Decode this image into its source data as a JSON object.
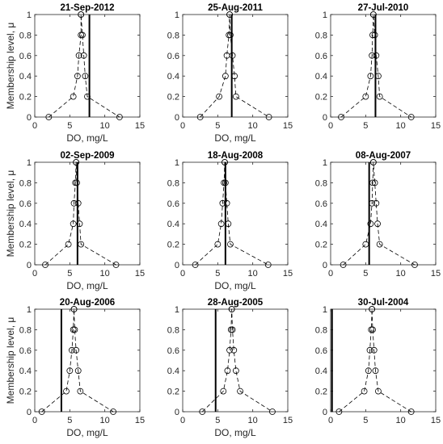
{
  "chart_data": [
    {
      "type": "line",
      "title": "21-Sep-2012",
      "xlabel": "DO, mg/L",
      "ylabel": "Membership level, μ",
      "xlim": [
        0,
        15
      ],
      "ylim": [
        0,
        1
      ],
      "xticks": [
        "0",
        "5",
        "10",
        "15"
      ],
      "yticks": [
        "0",
        "0.2",
        "0.4",
        "0.6",
        "0.8",
        "1"
      ],
      "series": [
        {
          "x": [
            2.0,
            5.5,
            6.1,
            6.3,
            6.6,
            6.6,
            6.6,
            6.8,
            7.0,
            7.2,
            7.5,
            12.1
          ],
          "y": [
            0,
            0.2,
            0.4,
            0.6,
            0.8,
            1,
            1,
            0.8,
            0.6,
            0.4,
            0.2,
            0
          ]
        }
      ],
      "vertical_line_x": 7.8
    },
    {
      "type": "line",
      "title": "25-Aug-2011",
      "xlabel": "DO, mg/L",
      "ylabel": "",
      "xlim": [
        0,
        15
      ],
      "ylim": [
        0,
        1
      ],
      "xticks": [
        "0",
        "5",
        "10",
        "15"
      ],
      "yticks": [
        "0",
        "0.2",
        "0.4",
        "0.6",
        "0.8",
        "1"
      ],
      "series": [
        {
          "x": [
            2.5,
            5.2,
            6.1,
            6.3,
            6.6,
            6.7,
            6.7,
            6.8,
            7.1,
            7.4,
            7.6,
            12.3
          ],
          "y": [
            0,
            0.2,
            0.4,
            0.6,
            0.8,
            1,
            1,
            0.8,
            0.6,
            0.4,
            0.2,
            0
          ]
        }
      ],
      "vertical_line_x": 7.0
    },
    {
      "type": "line",
      "title": "27-Jul-2010",
      "xlabel": "",
      "ylabel": "",
      "xlim": [
        0,
        15
      ],
      "ylim": [
        0,
        1
      ],
      "xticks": [
        "0",
        "5",
        "10",
        "15"
      ],
      "yticks": [
        "0",
        "0.2",
        "0.4",
        "0.6",
        "0.8",
        "1"
      ],
      "series": [
        {
          "x": [
            1.5,
            5.0,
            5.7,
            5.9,
            6.0,
            6.1,
            6.1,
            6.3,
            6.5,
            6.8,
            7.0,
            11.5
          ],
          "y": [
            0,
            0.2,
            0.4,
            0.6,
            0.8,
            1,
            1,
            0.8,
            0.6,
            0.4,
            0.2,
            0
          ]
        }
      ],
      "vertical_line_x": 6.4
    },
    {
      "type": "line",
      "title": "02-Sep-2009",
      "xlabel": "DO, mg/L",
      "ylabel": "Membership level, μ",
      "xlim": [
        0,
        15
      ],
      "ylim": [
        0,
        1
      ],
      "xticks": [
        "0",
        "5",
        "10",
        "15"
      ],
      "yticks": [
        "0",
        "0.2",
        "0.4",
        "0.6",
        "0.8",
        "1"
      ],
      "series": [
        {
          "x": [
            1.5,
            4.8,
            5.5,
            5.6,
            5.8,
            5.9,
            5.9,
            6.0,
            6.2,
            6.4,
            6.6,
            11.6
          ],
          "y": [
            0,
            0.2,
            0.4,
            0.6,
            0.8,
            1,
            1,
            0.8,
            0.6,
            0.4,
            0.2,
            0
          ]
        }
      ],
      "vertical_line_x": 6.1
    },
    {
      "type": "line",
      "title": "18-Aug-2008",
      "xlabel": "DO, mg/L",
      "ylabel": "",
      "xlim": [
        0,
        15
      ],
      "ylim": [
        0,
        1
      ],
      "xticks": [
        "0",
        "5",
        "10",
        "15"
      ],
      "yticks": [
        "0",
        "0.2",
        "0.4",
        "0.6",
        "0.8",
        "1"
      ],
      "series": [
        {
          "x": [
            1.8,
            5.0,
            5.5,
            5.7,
            5.9,
            6.0,
            6.0,
            6.1,
            6.3,
            6.5,
            6.8,
            12.2
          ],
          "y": [
            0,
            0.2,
            0.4,
            0.6,
            0.8,
            1,
            1,
            0.8,
            0.6,
            0.4,
            0.2,
            0
          ]
        }
      ],
      "vertical_line_x": 6.1
    },
    {
      "type": "line",
      "title": "08-Aug-2007",
      "xlabel": "",
      "ylabel": "",
      "xlim": [
        0,
        15
      ],
      "ylim": [
        0,
        1
      ],
      "xticks": [
        "0",
        "5",
        "10",
        "15"
      ],
      "yticks": [
        "0",
        "0.2",
        "0.4",
        "0.6",
        "0.8",
        "1"
      ],
      "series": [
        {
          "x": [
            1.8,
            5.0,
            5.7,
            5.9,
            6.0,
            6.1,
            6.1,
            6.3,
            6.5,
            6.7,
            7.0,
            12.0
          ],
          "y": [
            0,
            0.2,
            0.4,
            0.6,
            0.8,
            1,
            1,
            0.8,
            0.6,
            0.4,
            0.2,
            0
          ]
        }
      ],
      "vertical_line_x": 5.5
    },
    {
      "type": "line",
      "title": "20-Aug-2006",
      "xlabel": "DO, mg/L",
      "ylabel": "Membership level, μ",
      "xlim": [
        0,
        15
      ],
      "ylim": [
        0,
        1
      ],
      "xticks": [
        "0",
        "5",
        "10",
        "15"
      ],
      "yticks": [
        "0",
        "0.2",
        "0.4",
        "0.6",
        "0.8",
        "1"
      ],
      "series": [
        {
          "x": [
            1.0,
            4.5,
            5.0,
            5.3,
            5.5,
            5.6,
            5.6,
            5.7,
            5.9,
            6.2,
            6.5,
            11.2
          ],
          "y": [
            0,
            0.2,
            0.4,
            0.6,
            0.8,
            1,
            1,
            0.8,
            0.6,
            0.4,
            0.2,
            0
          ]
        }
      ],
      "vertical_line_x": 3.8
    },
    {
      "type": "line",
      "title": "28-Aug-2005",
      "xlabel": "DO, mg/L",
      "ylabel": "",
      "xlim": [
        0,
        15
      ],
      "ylim": [
        0,
        1
      ],
      "xticks": [
        "0",
        "5",
        "10",
        "15"
      ],
      "yticks": [
        "0",
        "0.2",
        "0.4",
        "0.6",
        "0.8",
        "1"
      ],
      "series": [
        {
          "x": [
            2.8,
            5.8,
            6.4,
            6.7,
            6.9,
            7.0,
            7.0,
            7.1,
            7.3,
            7.6,
            8.2,
            12.8
          ],
          "y": [
            0,
            0.2,
            0.4,
            0.6,
            0.8,
            1,
            1,
            0.8,
            0.6,
            0.4,
            0.2,
            0
          ]
        }
      ],
      "vertical_line_x": 4.7
    },
    {
      "type": "line",
      "title": "30-Jul-2004",
      "xlabel": "",
      "ylabel": "",
      "xlim": [
        0,
        15
      ],
      "ylim": [
        0,
        1
      ],
      "xticks": [
        "0",
        "5",
        "10",
        "15"
      ],
      "yticks": [
        "0",
        "0.2",
        "0.4",
        "0.6",
        "0.8",
        "1"
      ],
      "series": [
        {
          "x": [
            1.2,
            4.8,
            5.4,
            5.6,
            5.8,
            5.9,
            5.9,
            6.0,
            6.2,
            6.4,
            6.8,
            11.5
          ],
          "y": [
            0,
            0.2,
            0.4,
            0.6,
            0.8,
            1,
            1,
            0.8,
            0.6,
            0.4,
            0.2,
            0
          ]
        }
      ],
      "vertical_line_x": 0.2
    }
  ]
}
